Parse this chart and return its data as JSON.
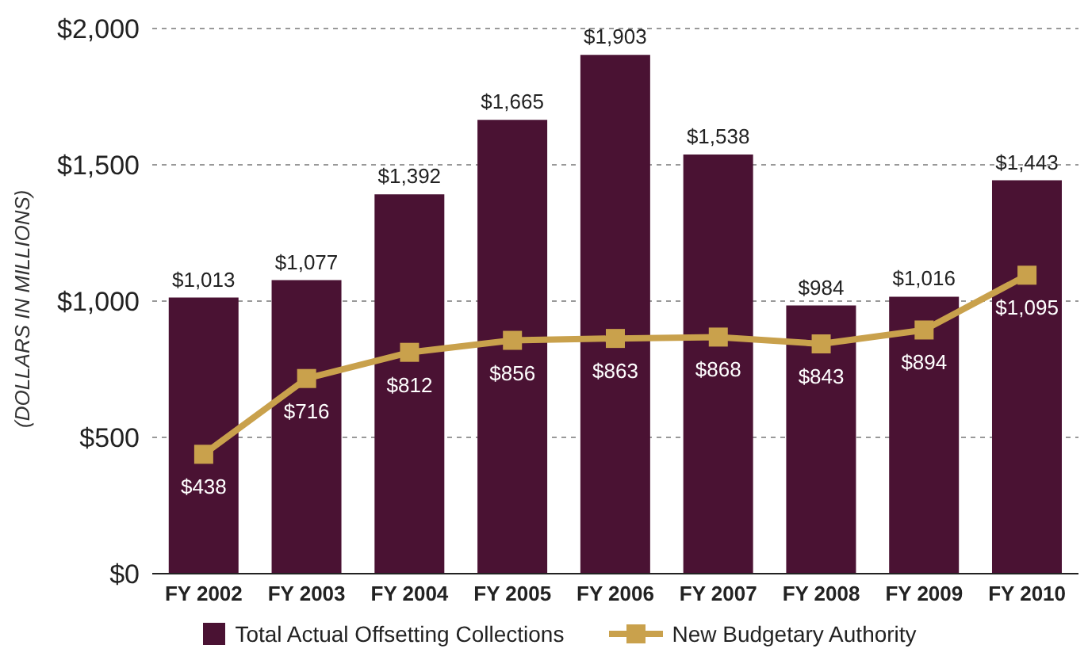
{
  "chart_data": {
    "type": "bar",
    "ylabel": "(DOLLARS IN MILLIONS)",
    "categories": [
      "FY 2002",
      "FY 2003",
      "FY 2004",
      "FY 2005",
      "FY 2006",
      "FY 2007",
      "FY 2008",
      "FY 2009",
      "FY 2010"
    ],
    "series": [
      {
        "name": "Total Actual Offsetting Collections",
        "color": "#4a1233",
        "values": [
          1013,
          1077,
          1392,
          1665,
          1903,
          1538,
          984,
          1016,
          1443
        ],
        "value_labels": [
          "$1,013",
          "$1,077",
          "$1,392",
          "$1,665",
          "$1,903",
          "$1,538",
          "$984",
          "$1,016",
          "$1,443"
        ]
      },
      {
        "name": "New Budgetary Authority",
        "type": "line",
        "color": "#c9a14c",
        "marker": "square",
        "values": [
          438,
          716,
          812,
          856,
          863,
          868,
          843,
          894,
          1095
        ],
        "value_labels": [
          "$438",
          "$716",
          "$812",
          "$856",
          "$863",
          "$868",
          "$843",
          "$894",
          "$1,095"
        ]
      }
    ],
    "ylim": [
      0,
      2000
    ],
    "yticks": [
      {
        "value": 0,
        "label": "$0"
      },
      {
        "value": 500,
        "label": "$500"
      },
      {
        "value": 1000,
        "label": "$1,000"
      },
      {
        "value": 1500,
        "label": "$1,500"
      },
      {
        "value": 2000,
        "label": "$2,000"
      }
    ],
    "grid": "y",
    "legend": "bottom"
  }
}
